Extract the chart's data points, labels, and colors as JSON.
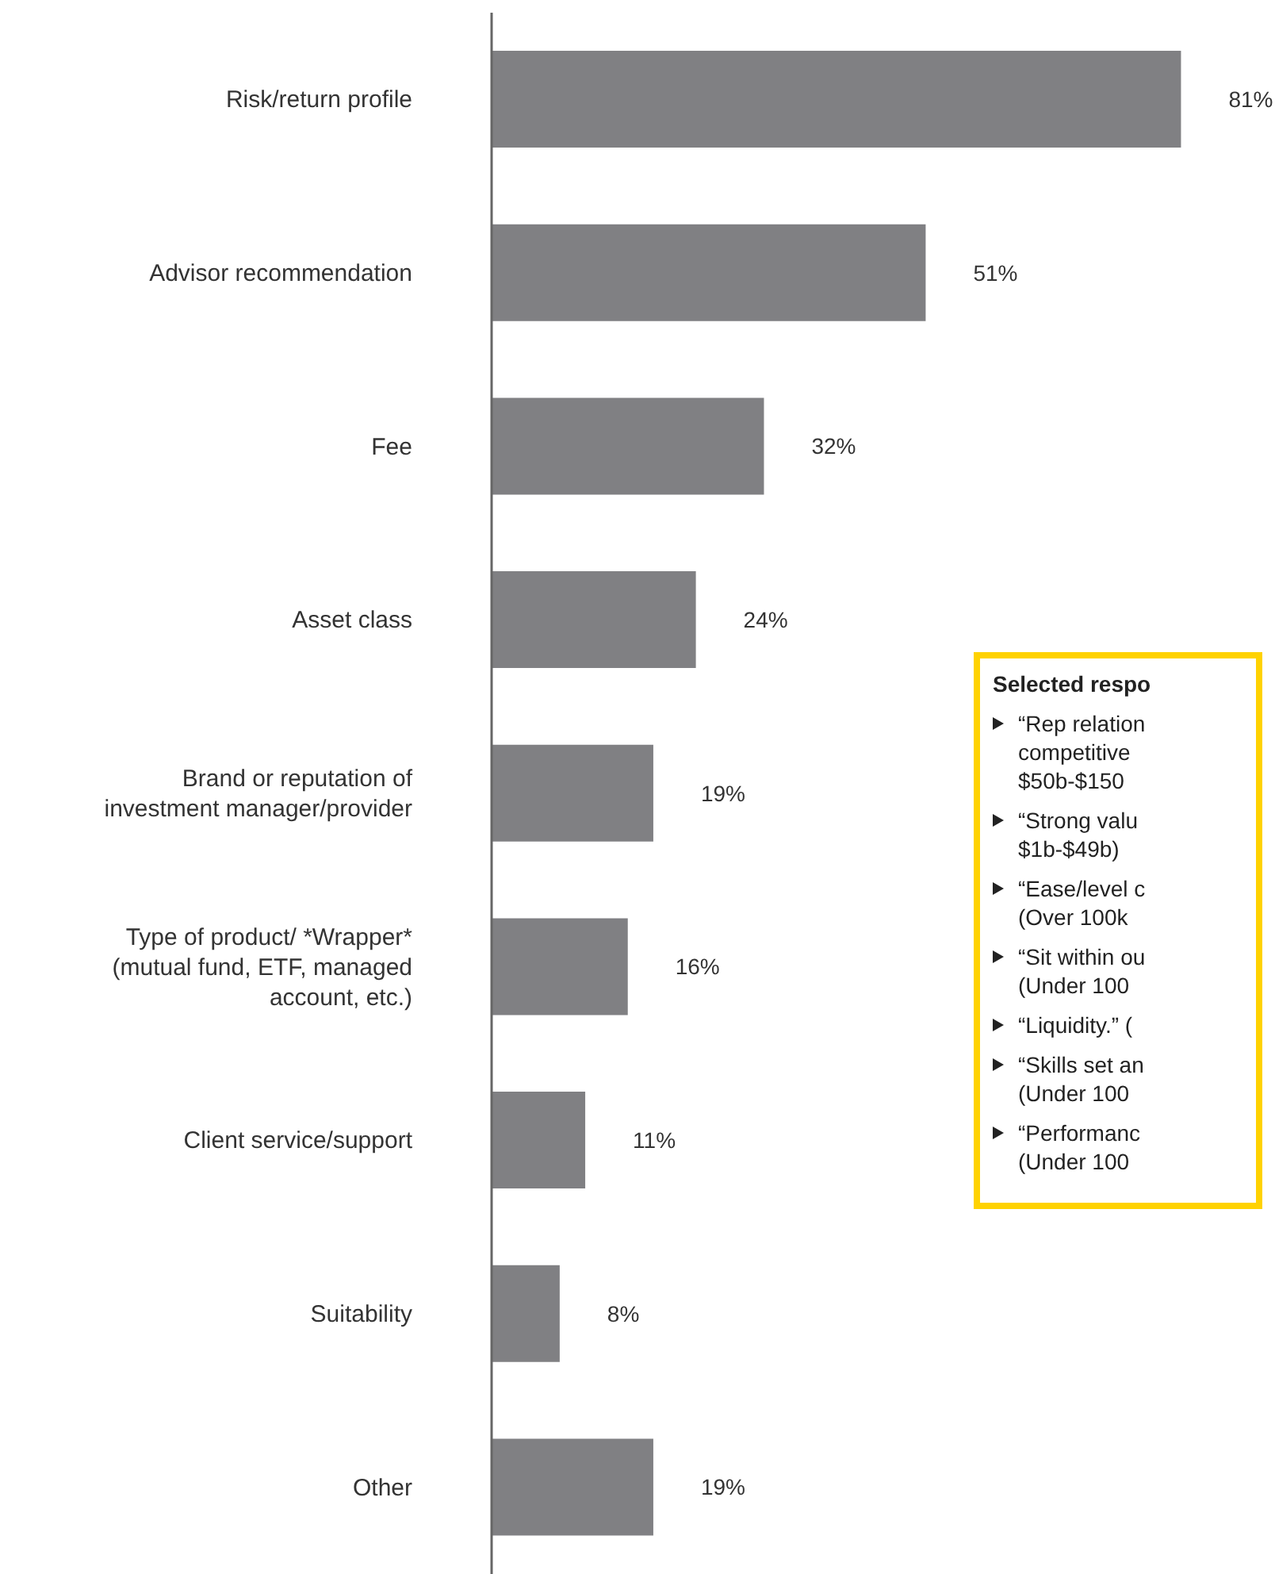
{
  "chart_data": {
    "type": "bar",
    "orientation": "horizontal",
    "categories": [
      "Risk/return profile",
      "Advisor recommendation",
      "Fee",
      "Asset class",
      "Brand or reputation of investment manager/provider",
      "Type of product/ *Wrapper* (mutual fund, ETF, managed account, etc.)",
      "Client service/support",
      "Suitability",
      "Other"
    ],
    "values": [
      81,
      51,
      32,
      24,
      19,
      16,
      11,
      8,
      19
    ],
    "value_labels": [
      "81%",
      "51%",
      "32%",
      "24%",
      "19%",
      "16%",
      "11%",
      "8%",
      "19%"
    ],
    "color": "#808083",
    "grid": false,
    "legend": false,
    "annotations": [
      "Selected respo",
      "“Rep relation\ncompetitive\n$50b-$150",
      "“Strong valu\n$1b-$49b)",
      "“Ease/level c\n(Over 100k",
      "“Sit within ou\n(Under 100",
      "“Liquidity.” (",
      "“Skills set an\n(Under 100",
      "“Performanc\n(Under 100"
    ]
  }
}
